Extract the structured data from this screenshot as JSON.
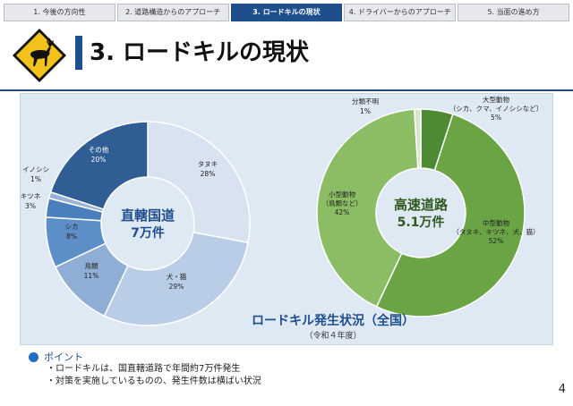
{
  "tabs": [
    {
      "label": "1. 今後の方向性",
      "active": false
    },
    {
      "label": "2. 道路構造からのアプローチ",
      "active": false
    },
    {
      "label": "3. ロードキルの現状",
      "active": true
    },
    {
      "label": "4. ドライバーからのアプローチ",
      "active": false
    },
    {
      "label": "5. 当面の進め方",
      "active": false
    }
  ],
  "title": "3. ロードキルの現状",
  "caption": {
    "main": "ロードキル発生状況（全国）",
    "sub": "（令和４年度）"
  },
  "points": {
    "heading": "ポイント",
    "items": [
      "・ロードキルは、国直轄道路で年間約7万件発生",
      "・対策を実施しているものの、発生件数は横ばい状況"
    ]
  },
  "page_number": "4",
  "chart_data": [
    {
      "type": "pie",
      "title": "直轄国道",
      "total_label": "7万件",
      "slices": [
        {
          "label": "タヌキ",
          "value": 28,
          "pct": "28%",
          "color": "#d8e2f0"
        },
        {
          "label": "犬・猫",
          "value": 29,
          "pct": "29%",
          "color": "#b9cde6"
        },
        {
          "label": "鳥類",
          "value": 11,
          "pct": "11%",
          "color": "#8eaed5"
        },
        {
          "label": "シカ",
          "value": 8,
          "pct": "8%",
          "color": "#5c8ec7"
        },
        {
          "label": "キツネ",
          "value": 3,
          "pct": "3%",
          "color": "#4a7fbd"
        },
        {
          "label": "イノシシ",
          "value": 1,
          "pct": "1%",
          "color": "#9ab3d3"
        },
        {
          "label": "その他",
          "value": 20,
          "pct": "20%",
          "color": "#2f5d94"
        }
      ]
    },
    {
      "type": "pie",
      "title": "高速道路",
      "total_label": "5.1万件",
      "slices": [
        {
          "label": "大型動物",
          "sublabel": "（シカ、クマ、イノシシなど）",
          "value": 5,
          "pct": "5%",
          "color": "#4e8a34"
        },
        {
          "label": "中型動物",
          "sublabel": "（タヌキ、キツネ、犬、猫）",
          "value": 52,
          "pct": "52%",
          "color": "#6aa444"
        },
        {
          "label": "小型動物",
          "sublabel": "（鳥類など）",
          "value": 42,
          "pct": "42%",
          "color": "#8bbd65"
        },
        {
          "label": "分類不明",
          "value": 1,
          "pct": "1%",
          "color": "#d9e6cc"
        }
      ]
    }
  ]
}
